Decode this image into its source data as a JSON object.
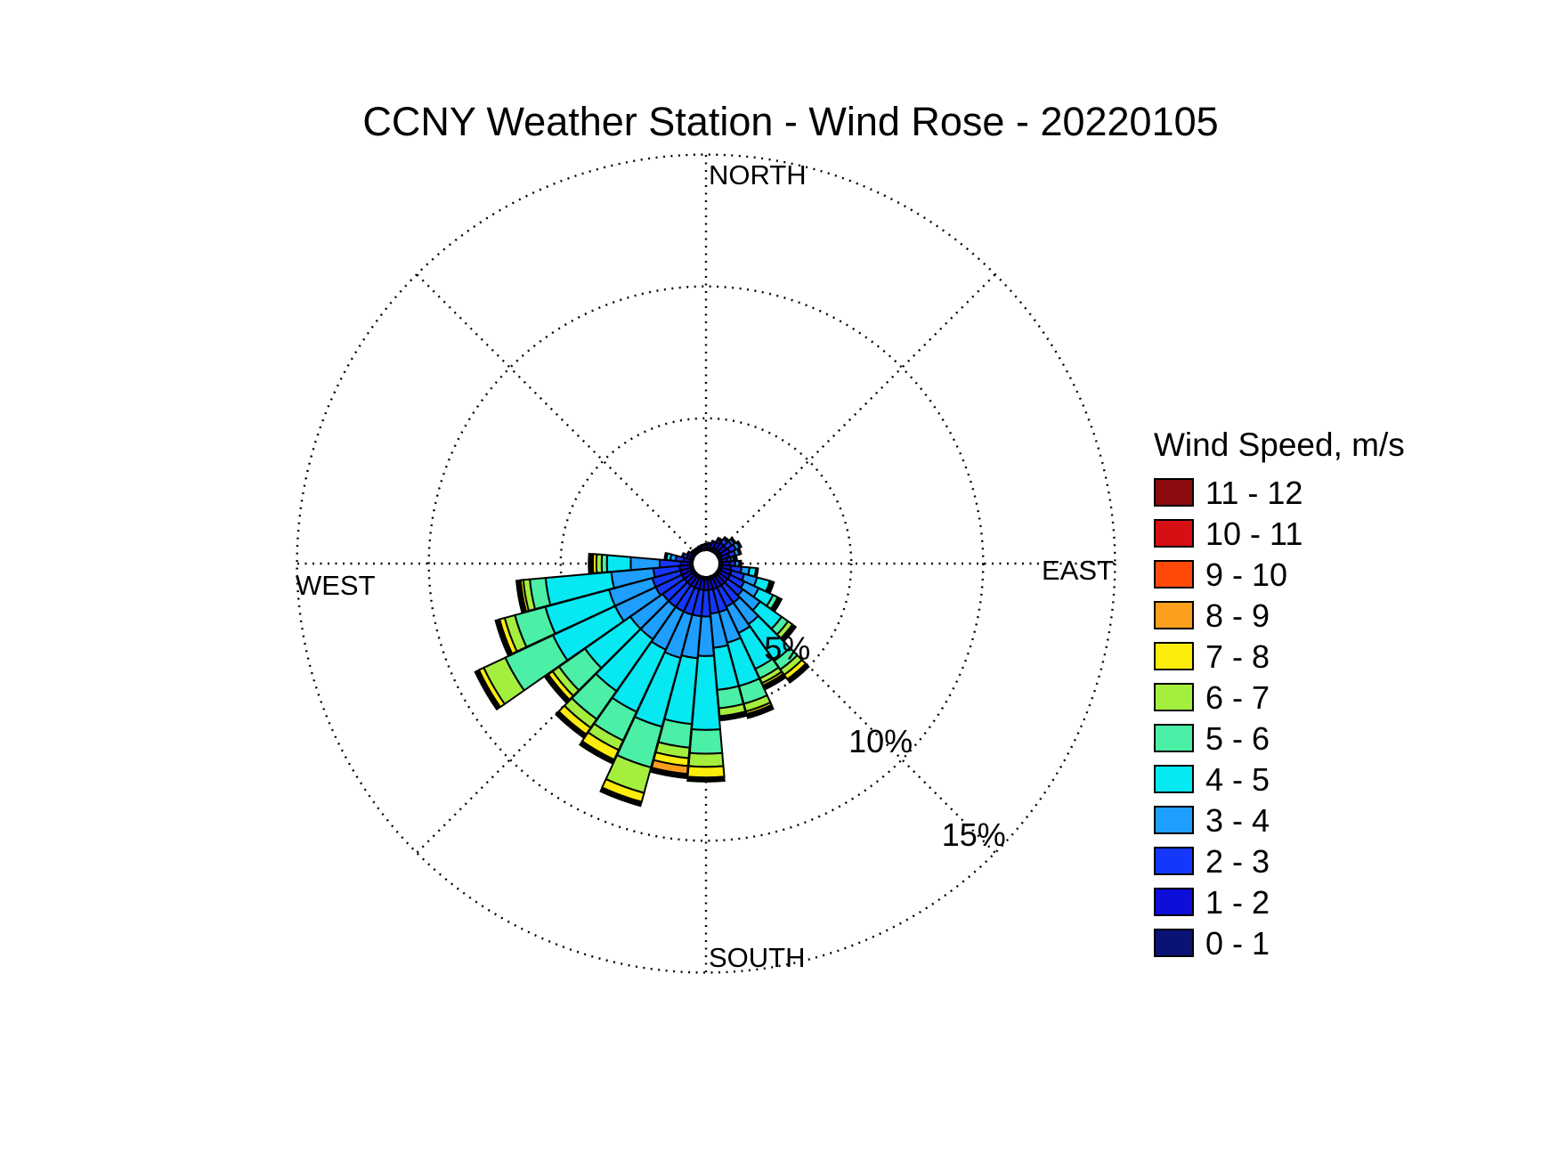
{
  "page": {
    "background": "#ffffff",
    "text_color": "#000000"
  },
  "title": "CCNY Weather Station - Wind Rose - 20220105",
  "compass": {
    "north": "NORTH",
    "east": "EAST",
    "south": "SOUTH",
    "west": "WEST"
  },
  "legend": {
    "title": "Wind Speed, m/s"
  },
  "chart_data": {
    "type": "windrose",
    "title": "CCNY Weather Station - Wind Rose - 20220105",
    "units": "m/s",
    "legend_title": "Wind Speed, m/s",
    "axis_max_percent": 15,
    "ring_percents": [
      5,
      10,
      15
    ],
    "ring_labels": [
      "5%",
      "10%",
      "15%"
    ],
    "sector_width_deg": 10,
    "grid_style": "dotted",
    "speed_bins": [
      {
        "range": "0 - 1",
        "color": "#0A1374"
      },
      {
        "range": "1 - 2",
        "color": "#0E0EDB"
      },
      {
        "range": "2 - 3",
        "color": "#1437FB"
      },
      {
        "range": "3 - 4",
        "color": "#1E9EFF"
      },
      {
        "range": "4 - 5",
        "color": "#06E8F2"
      },
      {
        "range": "5 - 6",
        "color": "#4BEFA5"
      },
      {
        "range": "6 - 7",
        "color": "#A4EF3E"
      },
      {
        "range": "7 - 8",
        "color": "#FCEC0C"
      },
      {
        "range": "8 - 9",
        "color": "#FA9E1C"
      },
      {
        "range": "9 - 10",
        "color": "#FF4A0A"
      },
      {
        "range": "10 - 11",
        "color": "#D50F14"
      },
      {
        "range": "11 - 12",
        "color": "#8C0B0F"
      }
    ],
    "petals": [
      {
        "deg": 0,
        "segments_percent": [
          0.1,
          0.1
        ]
      },
      {
        "deg": 10,
        "segments_percent": [
          0.1,
          0.15
        ]
      },
      {
        "deg": 20,
        "segments_percent": [
          0.1,
          0.25
        ]
      },
      {
        "deg": 30,
        "segments_percent": [
          0.15,
          0.25,
          0.1
        ]
      },
      {
        "deg": 40,
        "segments_percent": [
          0.15,
          0.3,
          0.2
        ]
      },
      {
        "deg": 50,
        "segments_percent": [
          0.15,
          0.3,
          0.25,
          0.1
        ]
      },
      {
        "deg": 60,
        "segments_percent": [
          0.15,
          0.35,
          0.25,
          0.15
        ]
      },
      {
        "deg": 70,
        "segments_percent": [
          0.1,
          0.3,
          0.25,
          0.15
        ]
      },
      {
        "deg": 80,
        "segments_percent": [
          0.1,
          0.2,
          0.15,
          0.1,
          0.05
        ]
      },
      {
        "deg": 90,
        "segments_percent": [
          0.1,
          0.3,
          0.2,
          0.15
        ]
      },
      {
        "deg": 100,
        "segments_percent": [
          0.1,
          0.35,
          0.4,
          0.3,
          0.25
        ]
      },
      {
        "deg": 110,
        "segments_percent": [
          0.1,
          0.4,
          0.5,
          0.5,
          0.5
        ]
      },
      {
        "deg": 120,
        "segments_percent": [
          0.1,
          0.4,
          0.6,
          0.6,
          0.6,
          0.2
        ]
      },
      {
        "deg": 130,
        "segments_percent": [
          0.1,
          0.4,
          0.7,
          0.8,
          1.0,
          0.3,
          0.2
        ]
      },
      {
        "deg": 140,
        "segments_percent": [
          0.1,
          0.4,
          0.8,
          1.0,
          1.7,
          0.4,
          0.25,
          0.2
        ]
      },
      {
        "deg": 150,
        "segments_percent": [
          0.1,
          0.4,
          0.8,
          1.1,
          1.5,
          0.4,
          0.2,
          0.1
        ]
      },
      {
        "deg": 160,
        "segments_percent": [
          0.1,
          0.4,
          0.9,
          1.2,
          1.7,
          0.7,
          0.3,
          0.1
        ]
      },
      {
        "deg": 170,
        "segments_percent": [
          0.1,
          0.4,
          0.9,
          1.3,
          1.6,
          0.7,
          0.3
        ]
      },
      {
        "deg": 180,
        "segments_percent": [
          0.1,
          0.4,
          1.0,
          1.5,
          2.8,
          0.9,
          0.5,
          0.4
        ]
      },
      {
        "deg": 190,
        "segments_percent": [
          0.1,
          0.4,
          1.0,
          1.6,
          2.5,
          0.9,
          0.4,
          0.3,
          0.3
        ]
      },
      {
        "deg": 200,
        "segments_percent": [
          0.1,
          0.4,
          1.0,
          1.7,
          2.7,
          1.6,
          1.0,
          0.35
        ]
      },
      {
        "deg": 210,
        "segments_percent": [
          0.1,
          0.4,
          1.0,
          1.6,
          2.6,
          1.2,
          0.4,
          0.4
        ]
      },
      {
        "deg": 220,
        "segments_percent": [
          0.1,
          0.4,
          1.0,
          1.5,
          2.4,
          1.3,
          0.4,
          0.3
        ]
      },
      {
        "deg": 230,
        "segments_percent": [
          0.1,
          0.4,
          1.0,
          1.5,
          2.1,
          1.2,
          0.3,
          0.2
        ]
      },
      {
        "deg": 240,
        "segments_percent": [
          0.1,
          0.4,
          1.1,
          1.7,
          2.6,
          2.0,
          0.9,
          0.2
        ]
      },
      {
        "deg": 250,
        "segments_percent": [
          0.1,
          0.4,
          1.1,
          1.7,
          2.5,
          1.2,
          0.4,
          0.2
        ]
      },
      {
        "deg": 260,
        "segments_percent": [
          0.1,
          0.4,
          1.0,
          1.6,
          2.5,
          0.6,
          0.25,
          0.1
        ]
      },
      {
        "deg": 270,
        "segments_percent": [
          0.1,
          0.35,
          0.8,
          1.1,
          0.9,
          0.2,
          0.2,
          0.13
        ]
      },
      {
        "deg": 280,
        "segments_percent": [
          0.1,
          0.25,
          0.3,
          0.2,
          0.15
        ]
      },
      {
        "deg": 290,
        "segments_percent": [
          0.1,
          0.15,
          0.15
        ]
      },
      {
        "deg": 300,
        "segments_percent": [
          0.1,
          0.15
        ]
      },
      {
        "deg": 310,
        "segments_percent": [
          0.08,
          0.08
        ]
      },
      {
        "deg": 320,
        "segments_percent": [
          0.08,
          0.06
        ]
      },
      {
        "deg": 330,
        "segments_percent": [
          0.08,
          0.06
        ]
      },
      {
        "deg": 340,
        "segments_percent": [
          0.08,
          0.08
        ]
      },
      {
        "deg": 350,
        "segments_percent": [
          0.08,
          0.1
        ]
      }
    ]
  }
}
